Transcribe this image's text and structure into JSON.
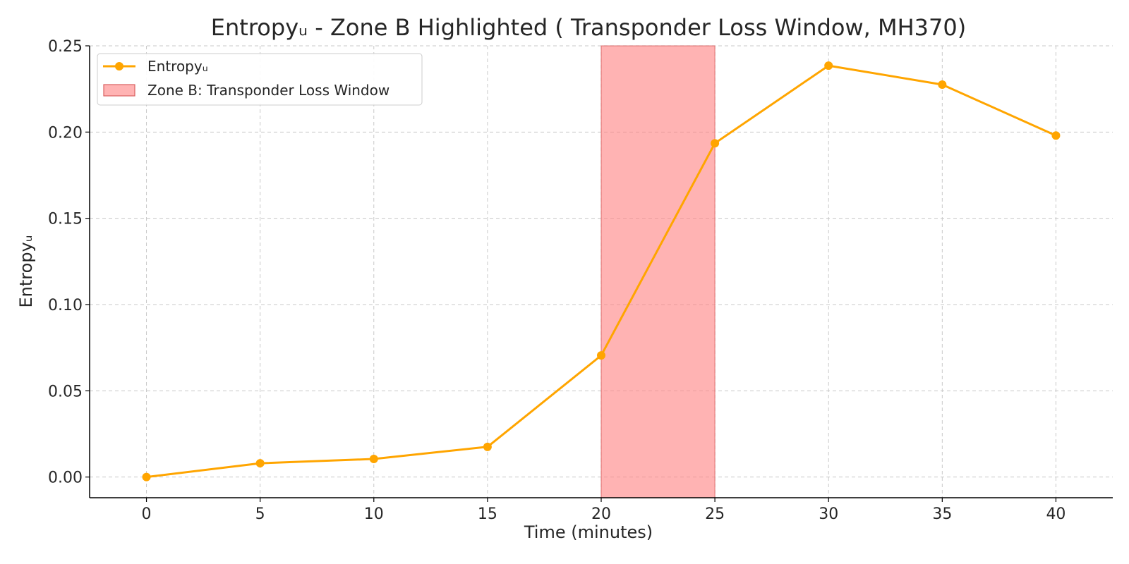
{
  "chart_data": {
    "type": "line",
    "title": "Entropyᵤ - Zone B Highlighted ( Transponder Loss Window, MH370)",
    "xlabel": "Time (minutes)",
    "ylabel": "Entropyᵤ",
    "xlim": [
      -2.5,
      42.5
    ],
    "ylim": [
      -0.012,
      0.25
    ],
    "xticks": [
      0,
      5,
      10,
      15,
      20,
      25,
      30,
      35,
      40
    ],
    "yticks": [
      0.0,
      0.05,
      0.1,
      0.15,
      0.2,
      0.25
    ],
    "xtick_labels": [
      "0",
      "5",
      "10",
      "15",
      "20",
      "25",
      "30",
      "35",
      "40"
    ],
    "ytick_labels": [
      "0.00",
      "0.05",
      "0.10",
      "0.15",
      "0.20",
      "0.25"
    ],
    "grid": true,
    "legend_position": "top-left",
    "series": [
      {
        "name": "Entropyᵤ",
        "color": "#FFA500",
        "marker": "circle",
        "x": [
          0,
          5,
          10,
          15,
          20,
          25,
          30,
          35,
          40
        ],
        "y": [
          0.0,
          0.008,
          0.0105,
          0.0175,
          0.0705,
          0.1935,
          0.2385,
          0.2275,
          0.198
        ]
      }
    ],
    "shaded_region": {
      "label": "Zone B: Transponder Loss Window",
      "x_start": 20,
      "x_end": 25,
      "color": "#FF8080"
    }
  }
}
